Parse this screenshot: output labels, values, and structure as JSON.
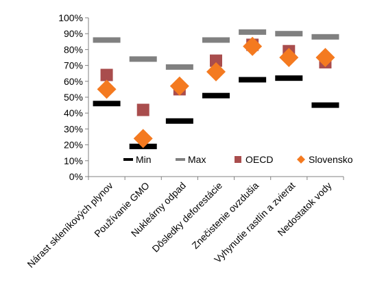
{
  "chart_data": {
    "type": "scatter",
    "title": "",
    "xlabel": "",
    "ylabel": "",
    "ylim": [
      0,
      100
    ],
    "ytick_step": 10,
    "y_unit": "%",
    "grid": false,
    "legend_position": "inside-bottom",
    "categories": [
      "Nárast skleníkových plynov",
      "Používanie GMO",
      "Nukleárny odpad",
      "Dôsledky deforestácie",
      "Znečistenie ovzdušia",
      "Vyhynutie rastlín a zvierat",
      "Nedostatok vody"
    ],
    "series": [
      {
        "name": "Min",
        "marker": "dash",
        "color": "#000000",
        "values": [
          46,
          19,
          35,
          51,
          61,
          62,
          45
        ]
      },
      {
        "name": "Max",
        "marker": "dash",
        "color": "#808080",
        "values": [
          86,
          74,
          69,
          86,
          91,
          90,
          88
        ]
      },
      {
        "name": "OECD",
        "marker": "square",
        "color": "#A94D4D",
        "values": [
          64,
          42,
          55,
          73,
          83,
          79,
          72
        ]
      },
      {
        "name": "Slovensko",
        "marker": "diamond",
        "color": "#F47A20",
        "values": [
          55,
          24,
          57,
          66,
          82,
          75,
          75
        ]
      }
    ]
  }
}
